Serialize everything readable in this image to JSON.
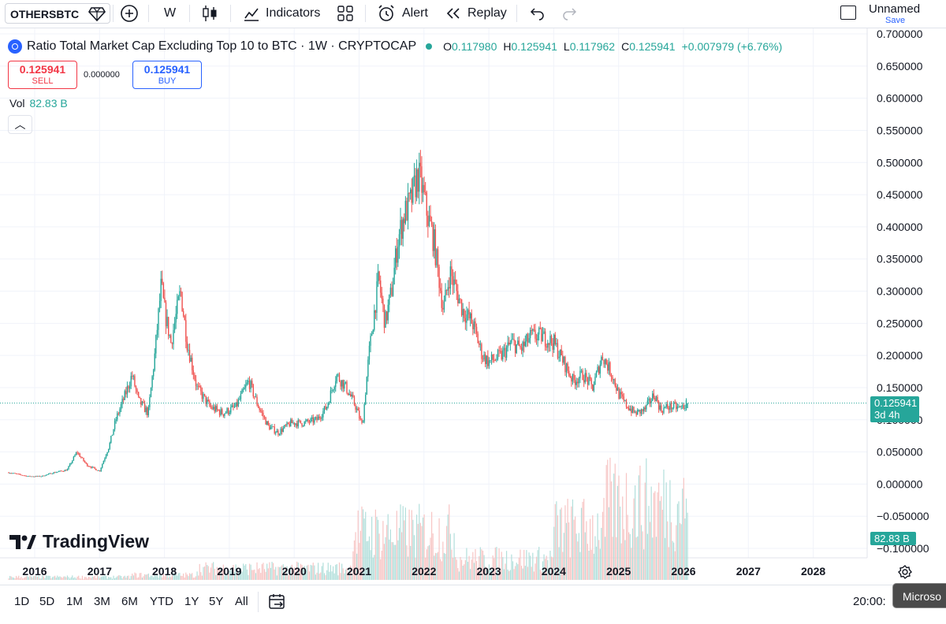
{
  "toolbar": {
    "symbol": "OTHERSBTC",
    "interval": "W",
    "indicators_label": "Indicators",
    "alert_label": "Alert",
    "replay_label": "Replay",
    "layout_name": "Unnamed",
    "save_label": "Save"
  },
  "legend": {
    "title": "Ratio Total Market Cap Excluding Top 10 to BTC · 1W · CRYPTOCAP",
    "o_label": "O",
    "o_value": "0.117980",
    "h_label": "H",
    "h_value": "0.125941",
    "l_label": "L",
    "l_value": "0.117962",
    "c_label": "C",
    "c_value": "0.125941",
    "change": "+0.007979 (+6.76%)"
  },
  "trade": {
    "sell_price": "0.125941",
    "sell_label": "SELL",
    "spread": "0.000000",
    "buy_price": "0.125941",
    "buy_label": "BUY"
  },
  "volume": {
    "label": "Vol",
    "value": "82.83 B",
    "badge": "82.83 B"
  },
  "last_price": {
    "value": "0.125941",
    "countdown": "3d 4h"
  },
  "watermark": "TradingView",
  "ranges": [
    "1D",
    "5D",
    "1M",
    "3M",
    "6M",
    "YTD",
    "1Y",
    "5Y",
    "All"
  ],
  "clock": "20:00:",
  "tooltip": "Microso",
  "colors": {
    "up": "#26a69a",
    "down": "#ef5350",
    "vol_up": "#b2dfdb",
    "vol_down": "#f7c5c4"
  },
  "chart_data": {
    "type": "line",
    "title": "Ratio Total Market Cap Excluding Top 10 to BTC · 1W · CRYPTOCAP",
    "x_ticks": [
      "2016",
      "2017",
      "2018",
      "2019",
      "2020",
      "2021",
      "2022",
      "2023",
      "2024",
      "2025",
      "2026",
      "2027",
      "2028"
    ],
    "y_ticks": [
      "0.700000",
      "0.650000",
      "0.600000",
      "0.550000",
      "0.500000",
      "0.450000",
      "0.400000",
      "0.350000",
      "0.300000",
      "0.250000",
      "0.200000",
      "0.150000",
      "0.100000",
      "0.050000",
      "0.000000",
      "−0.050000",
      "−0.100000"
    ],
    "ylim": [
      -0.1,
      0.7
    ],
    "x": [
      2015.6,
      2015.9,
      2016.1,
      2016.3,
      2016.5,
      2016.65,
      2016.8,
      2017.0,
      2017.15,
      2017.25,
      2017.4,
      2017.5,
      2017.6,
      2017.75,
      2017.85,
      2017.95,
      2018.0,
      2018.1,
      2018.25,
      2018.35,
      2018.5,
      2018.7,
      2018.9,
      2019.1,
      2019.3,
      2019.45,
      2019.6,
      2019.75,
      2019.95,
      2020.15,
      2020.35,
      2020.5,
      2020.65,
      2020.8,
      2020.95,
      2021.05,
      2021.15,
      2021.3,
      2021.4,
      2021.5,
      2021.6,
      2021.7,
      2021.8,
      2021.9,
      2021.95,
      2022.05,
      2022.15,
      2022.3,
      2022.4,
      2022.5,
      2022.6,
      2022.75,
      2022.9,
      2023.0,
      2023.2,
      2023.35,
      2023.5,
      2023.65,
      2023.8,
      2024.0,
      2024.15,
      2024.3,
      2024.45,
      2024.6,
      2024.75,
      2024.9,
      2025.0,
      2025.1,
      2025.25,
      2025.4,
      2025.55,
      2025.65,
      2025.75,
      2025.85,
      2025.95,
      2026.07
    ],
    "values": [
      0.018,
      0.012,
      0.012,
      0.018,
      0.022,
      0.05,
      0.03,
      0.02,
      0.06,
      0.1,
      0.14,
      0.17,
      0.13,
      0.11,
      0.2,
      0.31,
      0.27,
      0.22,
      0.3,
      0.22,
      0.15,
      0.12,
      0.11,
      0.12,
      0.16,
      0.12,
      0.09,
      0.08,
      0.095,
      0.095,
      0.1,
      0.12,
      0.17,
      0.15,
      0.12,
      0.09,
      0.2,
      0.32,
      0.25,
      0.3,
      0.38,
      0.42,
      0.44,
      0.48,
      0.47,
      0.42,
      0.38,
      0.27,
      0.33,
      0.3,
      0.27,
      0.25,
      0.2,
      0.19,
      0.2,
      0.22,
      0.21,
      0.23,
      0.23,
      0.22,
      0.19,
      0.16,
      0.17,
      0.15,
      0.2,
      0.17,
      0.14,
      0.125,
      0.11,
      0.115,
      0.14,
      0.115,
      0.12,
      0.12,
      0.118,
      0.126
    ],
    "grid": true,
    "legend_position": "top-left"
  }
}
